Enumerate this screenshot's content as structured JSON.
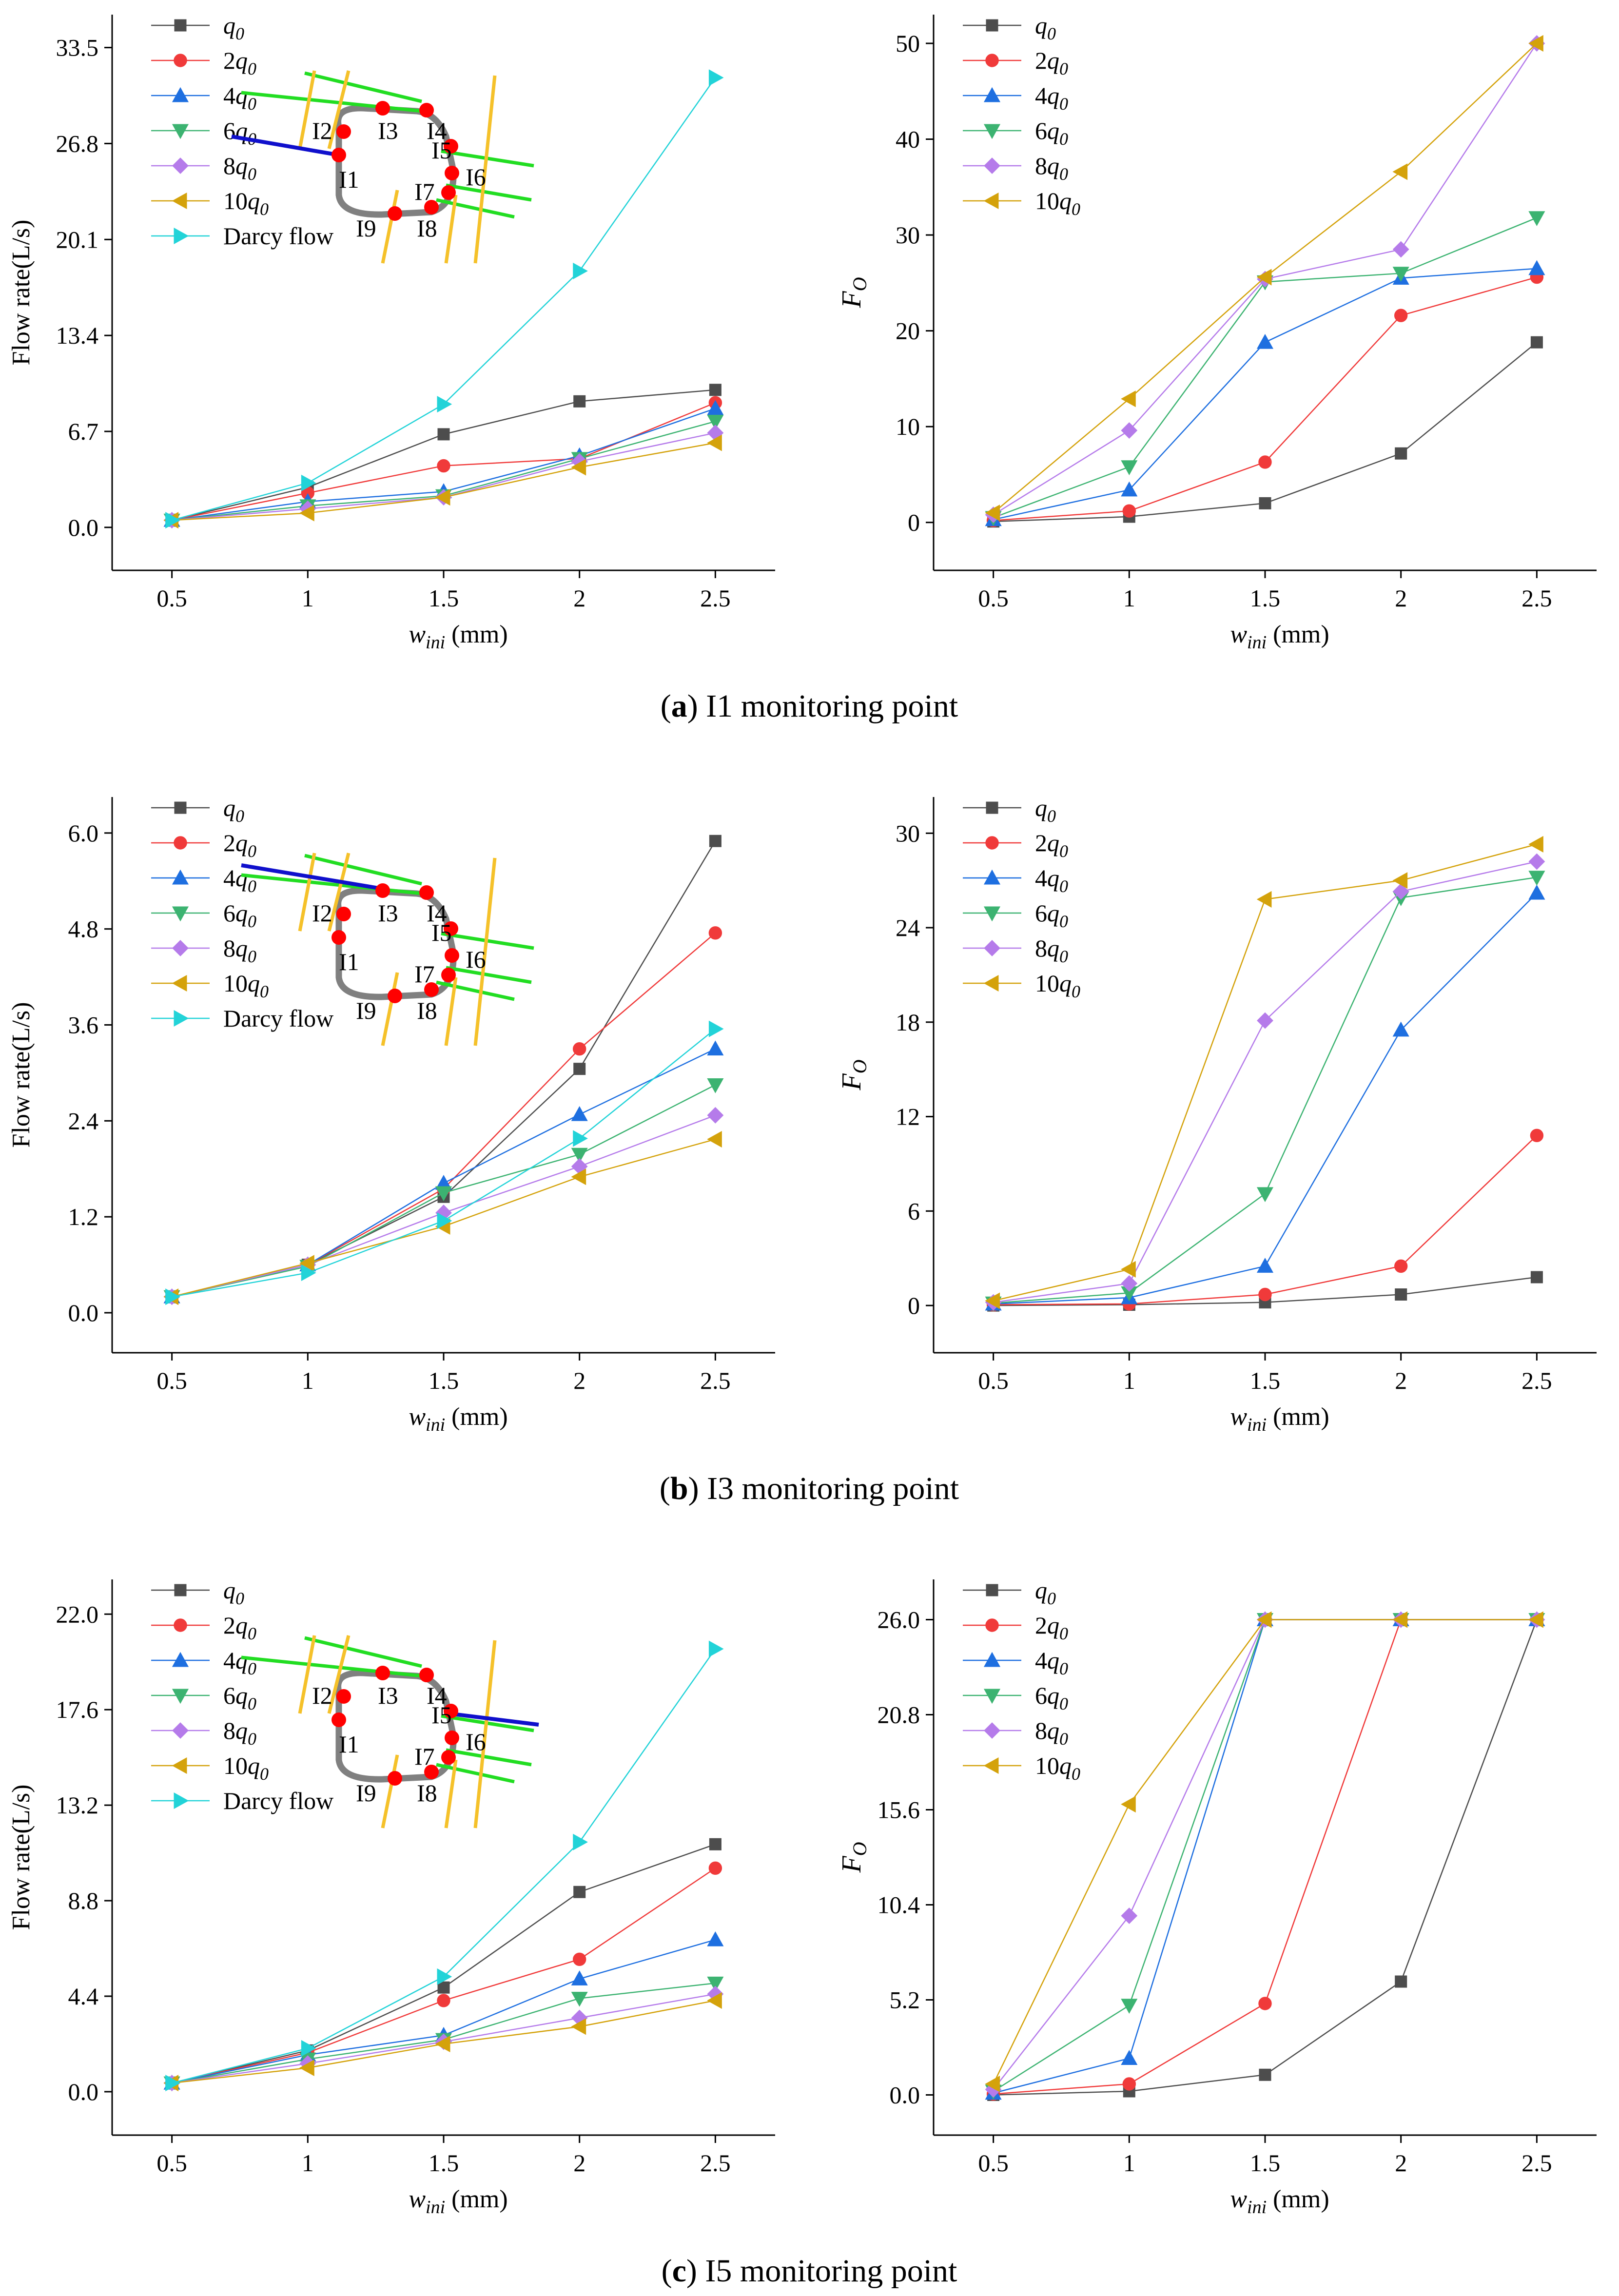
{
  "panels": [
    {
      "caption": {
        "label": "a",
        "text": " I1 monitoring point"
      },
      "flow_rate": {
        "ylabel": "Flow rate(L/s)",
        "xlabel": {
          "main": "w",
          "sub": "ini",
          "unit": " (mm)"
        },
        "yticks": [
          "0.0",
          "6.7",
          "13.4",
          "20.1",
          "26.8",
          "33.5"
        ],
        "ylim": [
          -3.0,
          35.8
        ]
      },
      "fo": {
        "ylabel": {
          "main": "F",
          "sub": "O"
        },
        "xlabel": {
          "main": "w",
          "sub": "ini",
          "unit": " (mm)"
        },
        "yticks": [
          "0",
          "10",
          "20",
          "30",
          "40",
          "50"
        ],
        "ylim": [
          -5.0,
          53.0
        ]
      },
      "inset": {
        "highlight": "I1",
        "labels": [
          "I1",
          "I2",
          "I3",
          "I4",
          "I5",
          "I6",
          "I7",
          "I8",
          "I9"
        ]
      }
    },
    {
      "caption": {
        "label": "b",
        "text": " I3 monitoring point"
      },
      "flow_rate": {
        "ylabel": "Flow rate(L/s)",
        "xlabel": {
          "main": "w",
          "sub": "ini",
          "unit": " (mm)"
        },
        "yticks": [
          "0.0",
          "1.2",
          "2.4",
          "3.6",
          "4.8",
          "6.0"
        ],
        "ylim": [
          -0.5,
          6.45
        ]
      },
      "fo": {
        "ylabel": {
          "main": "F",
          "sub": "O"
        },
        "xlabel": {
          "main": "w",
          "sub": "ini",
          "unit": " (mm)"
        },
        "yticks": [
          "0",
          "6",
          "12",
          "18",
          "24",
          "30"
        ],
        "ylim": [
          -3.0,
          32.3
        ]
      },
      "inset": {
        "highlight": "I3",
        "labels": [
          "I1",
          "I2",
          "I3",
          "I4",
          "I5",
          "I6",
          "I7",
          "I8",
          "I9"
        ]
      }
    },
    {
      "caption": {
        "label": "c",
        "text": " I5 monitoring point"
      },
      "flow_rate": {
        "ylabel": "Flow rate(L/s)",
        "xlabel": {
          "main": "w",
          "sub": "ini",
          "unit": " (mm)"
        },
        "yticks": [
          "0.0",
          "4.4",
          "8.8",
          "13.2",
          "17.6",
          "22.0"
        ],
        "ylim": [
          -2.0,
          23.6
        ]
      },
      "fo": {
        "ylabel": {
          "main": "F",
          "sub": "O"
        },
        "xlabel": {
          "main": "w",
          "sub": "ini",
          "unit": " (mm)"
        },
        "yticks": [
          "0.0",
          "5.2",
          "10.4",
          "15.6",
          "20.8",
          "26.0"
        ],
        "ylim": [
          -2.2,
          28.2
        ]
      },
      "inset": {
        "highlight": "I5",
        "labels": [
          "I1",
          "I2",
          "I3",
          "I4",
          "I5",
          "I6",
          "I7",
          "I8",
          "I9"
        ]
      }
    }
  ],
  "legend_entries": [
    {
      "coef": "",
      "q": "q",
      "sub": "0"
    },
    {
      "coef": "2",
      "q": "q",
      "sub": "0"
    },
    {
      "coef": "4",
      "q": "q",
      "sub": "0"
    },
    {
      "coef": "6",
      "q": "q",
      "sub": "0"
    },
    {
      "coef": "8",
      "q": "q",
      "sub": "0"
    },
    {
      "coef": "10",
      "q": "q",
      "sub": "0"
    },
    {
      "coef": "",
      "q": "Darcy flow",
      "sub": ""
    }
  ],
  "series_style": [
    {
      "color": "#4d4d4d",
      "marker": "square"
    },
    {
      "color": "#f03a3a",
      "marker": "circle"
    },
    {
      "color": "#1e6fe0",
      "marker": "triangle-up"
    },
    {
      "color": "#3cb371",
      "marker": "triangle-down"
    },
    {
      "color": "#b57bea",
      "marker": "diamond"
    },
    {
      "color": "#d4a20b",
      "marker": "triangle-left"
    },
    {
      "color": "#22d3d8",
      "marker": "triangle-right"
    }
  ],
  "inset_colors": {
    "ring": "#808080",
    "point": "#ff0000",
    "green": "#22dd22",
    "yellow": "#f5c12a",
    "blue": "#1010cc"
  },
  "chart_data": [
    {
      "type": "line",
      "title": "(a) I1 monitoring point - Flow rate",
      "xlabel": "w_ini (mm)",
      "ylabel": "Flow rate(L/s)",
      "x": [
        0.5,
        1,
        1.5,
        2,
        2.5
      ],
      "ylim": [
        -3.0,
        35.8
      ],
      "series": [
        {
          "name": "q0",
          "values": [
            0.5,
            2.8,
            6.5,
            8.8,
            9.6
          ]
        },
        {
          "name": "2q0",
          "values": [
            0.5,
            2.4,
            4.3,
            4.8,
            8.7
          ]
        },
        {
          "name": "4q0",
          "values": [
            0.5,
            1.8,
            2.5,
            5.0,
            8.3
          ]
        },
        {
          "name": "6q0",
          "values": [
            0.5,
            1.5,
            2.2,
            4.8,
            7.4
          ]
        },
        {
          "name": "8q0",
          "values": [
            0.5,
            1.3,
            2.1,
            4.6,
            6.6
          ]
        },
        {
          "name": "10q0",
          "values": [
            0.5,
            1.0,
            2.1,
            4.2,
            5.9
          ]
        },
        {
          "name": "Darcy flow",
          "values": [
            0.5,
            3.1,
            8.6,
            17.9,
            31.4
          ]
        }
      ]
    },
    {
      "type": "line",
      "title": "(a) I1 monitoring point - FO",
      "xlabel": "w_ini (mm)",
      "ylabel": "FO",
      "x": [
        0.5,
        1,
        1.5,
        2,
        2.5
      ],
      "ylim": [
        -5.0,
        53.0
      ],
      "series": [
        {
          "name": "q0",
          "values": [
            0.1,
            0.6,
            2.0,
            7.2,
            18.8
          ]
        },
        {
          "name": "2q0",
          "values": [
            0.2,
            1.2,
            6.3,
            21.6,
            25.6
          ]
        },
        {
          "name": "4q0",
          "values": [
            0.3,
            3.4,
            18.8,
            25.5,
            26.5
          ]
        },
        {
          "name": "6q0",
          "values": [
            0.5,
            5.8,
            25.1,
            26.0,
            31.8
          ]
        },
        {
          "name": "8q0",
          "values": [
            0.8,
            9.6,
            25.4,
            28.5,
            50.0
          ]
        },
        {
          "name": "10q0",
          "values": [
            1.0,
            12.9,
            25.6,
            36.6,
            50.0
          ]
        }
      ]
    },
    {
      "type": "line",
      "title": "(b) I3 monitoring point - Flow rate",
      "xlabel": "w_ini (mm)",
      "ylabel": "Flow rate(L/s)",
      "x": [
        0.5,
        1,
        1.5,
        2,
        2.5
      ],
      "ylim": [
        -0.5,
        6.45
      ],
      "series": [
        {
          "name": "q0",
          "values": [
            0.2,
            0.6,
            1.45,
            3.05,
            5.9
          ]
        },
        {
          "name": "2q0",
          "values": [
            0.2,
            0.6,
            1.55,
            3.3,
            4.75
          ]
        },
        {
          "name": "4q0",
          "values": [
            0.2,
            0.6,
            1.62,
            2.48,
            3.3
          ]
        },
        {
          "name": "6q0",
          "values": [
            0.2,
            0.58,
            1.5,
            1.98,
            2.85
          ]
        },
        {
          "name": "8q0",
          "values": [
            0.2,
            0.6,
            1.25,
            1.83,
            2.47
          ]
        },
        {
          "name": "10q0",
          "values": [
            0.2,
            0.62,
            1.08,
            1.7,
            2.17
          ]
        },
        {
          "name": "Darcy flow",
          "values": [
            0.2,
            0.5,
            1.15,
            2.18,
            3.55
          ]
        }
      ]
    },
    {
      "type": "line",
      "title": "(b) I3 monitoring point - FO",
      "xlabel": "w_ini (mm)",
      "ylabel": "FO",
      "x": [
        0.5,
        1,
        1.5,
        2,
        2.5
      ],
      "ylim": [
        -3.0,
        32.3
      ],
      "series": [
        {
          "name": "q0",
          "values": [
            0.0,
            0.05,
            0.2,
            0.7,
            1.8
          ]
        },
        {
          "name": "2q0",
          "values": [
            0.05,
            0.1,
            0.7,
            2.5,
            10.8
          ]
        },
        {
          "name": "4q0",
          "values": [
            0.1,
            0.5,
            2.5,
            17.5,
            26.2
          ]
        },
        {
          "name": "6q0",
          "values": [
            0.15,
            0.8,
            7.1,
            25.9,
            27.2
          ]
        },
        {
          "name": "8q0",
          "values": [
            0.2,
            1.4,
            18.1,
            26.3,
            28.2
          ]
        },
        {
          "name": "10q0",
          "values": [
            0.3,
            2.3,
            25.8,
            27.0,
            29.3
          ]
        }
      ]
    },
    {
      "type": "line",
      "title": "(c) I5 monitoring point - Flow rate",
      "xlabel": "w_ini (mm)",
      "ylabel": "Flow rate(L/s)",
      "x": [
        0.5,
        1,
        1.5,
        2,
        2.5
      ],
      "ylim": [
        -2.0,
        23.6
      ],
      "series": [
        {
          "name": "q0",
          "values": [
            0.4,
            1.9,
            4.8,
            9.2,
            11.4
          ]
        },
        {
          "name": "2q0",
          "values": [
            0.4,
            1.8,
            4.2,
            6.1,
            10.3
          ]
        },
        {
          "name": "4q0",
          "values": [
            0.4,
            1.7,
            2.6,
            5.2,
            7.0
          ]
        },
        {
          "name": "6q0",
          "values": [
            0.4,
            1.5,
            2.4,
            4.3,
            5.0
          ]
        },
        {
          "name": "8q0",
          "values": [
            0.4,
            1.3,
            2.3,
            3.4,
            4.5
          ]
        },
        {
          "name": "10q0",
          "values": [
            0.4,
            1.1,
            2.2,
            3.0,
            4.2
          ]
        },
        {
          "name": "Darcy flow",
          "values": [
            0.4,
            2.0,
            5.3,
            11.5,
            20.4
          ]
        }
      ]
    },
    {
      "type": "line",
      "title": "(c) I5 monitoring point - FO",
      "xlabel": "w_ini (mm)",
      "ylabel": "FO",
      "x": [
        0.5,
        1,
        1.5,
        2,
        2.5
      ],
      "ylim": [
        -2.2,
        28.2
      ],
      "series": [
        {
          "name": "q0",
          "values": [
            0.0,
            0.2,
            1.1,
            6.2,
            26.0
          ]
        },
        {
          "name": "2q0",
          "values": [
            0.05,
            0.6,
            5.0,
            26.0,
            26.0
          ]
        },
        {
          "name": "4q0",
          "values": [
            0.1,
            2.0,
            26.0,
            26.0,
            26.0
          ]
        },
        {
          "name": "6q0",
          "values": [
            0.2,
            4.9,
            26.0,
            26.0,
            26.0
          ]
        },
        {
          "name": "8q0",
          "values": [
            0.3,
            9.8,
            26.0,
            26.0,
            26.0
          ]
        },
        {
          "name": "10q0",
          "values": [
            0.6,
            15.9,
            26.0,
            26.0,
            26.0
          ]
        }
      ]
    }
  ],
  "xticks": [
    "0.5",
    "1",
    "1.5",
    "2",
    "2.5"
  ]
}
